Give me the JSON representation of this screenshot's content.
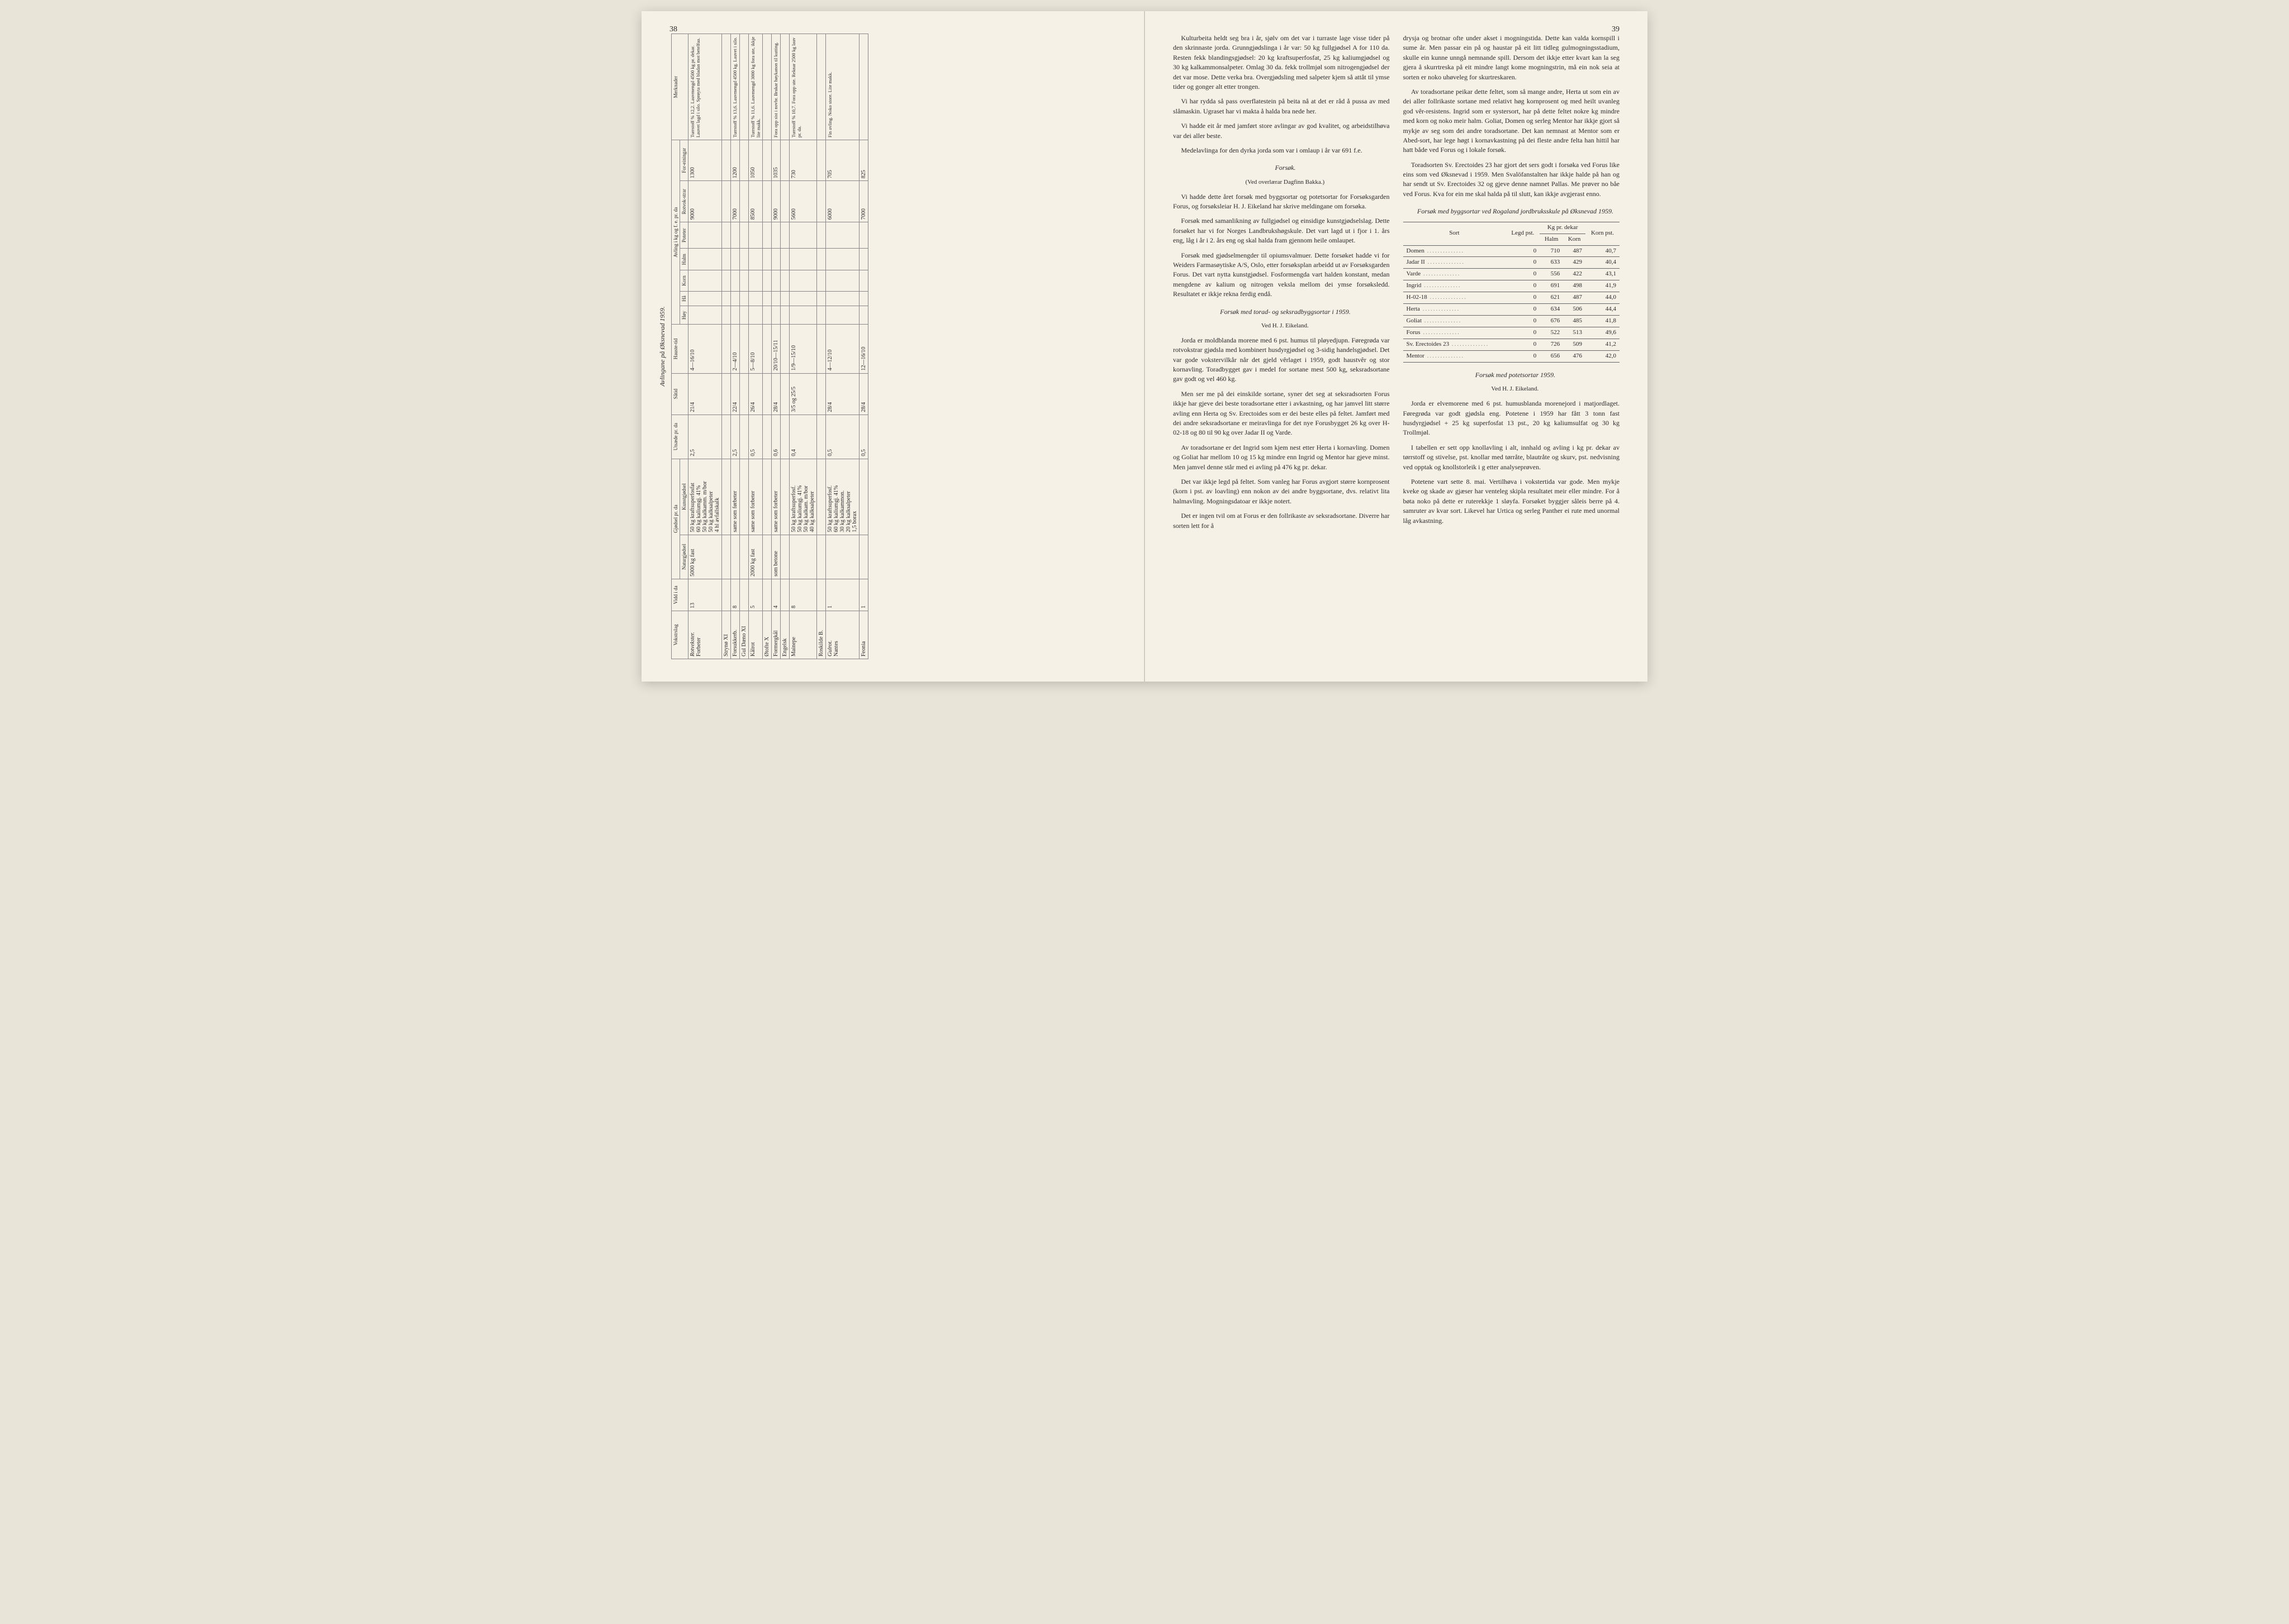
{
  "pageLeft": "38",
  "pageRight": "39",
  "leftTable": {
    "title": "Avlingane på Øksnevad 1959.",
    "headerGroups": [
      {
        "label": "Vokstrslag"
      },
      {
        "label": "Vidd i da"
      },
      {
        "label": "Gjødsel pr. da",
        "sub": [
          "Naturgjødsel",
          "Kunstgjødsel"
        ]
      },
      {
        "label": "Utsæde pr. da"
      },
      {
        "label": "Såtid"
      },
      {
        "label": "Hauste-tid"
      },
      {
        "label": "Avling i kg og f. e. pr. da",
        "sub": [
          "Høy",
          "Hå",
          "Korn",
          "Halm",
          "Poteter",
          "Rotvok-strar",
          "For-einingar"
        ]
      },
      {
        "label": "Merknader"
      }
    ],
    "rows": [
      {
        "crop": "Rotvekster.",
        "items": [
          {
            "name": "Forbeter",
            "vidd": "13",
            "natur": "5000 kg fast",
            "kunst": "50 kg kraftsuperfosfat\n60 kg kaliumgj. 41%\n50 kg kalkamm. m/bor\n50 kg kalksalpeter\n4 hl avfallskalk",
            "utsaede": "2,5",
            "satid": "21/4",
            "hauste": "4—16/10",
            "rotvok": "9000",
            "fe": "1300",
            "merk": "Turrstoff % 12,2. Lauvmengd 4500 kg pr. dekar. Lauvet lagd i silo. Sprøyta med bladan mot betelfua."
          },
          {
            "name": "Strynø XI",
            "vidd": "",
            "natur": "",
            "kunst": "",
            "utsaede": "",
            "satid": "",
            "hauste": "",
            "rotvok": "",
            "fe": "",
            "merk": ""
          }
        ]
      },
      {
        "crop": "",
        "items": [
          {
            "name": "Forsukkerb.",
            "vidd": "8",
            "natur": "",
            "kunst": "same som førbeter",
            "utsaede": "2,5",
            "satid": "22/4",
            "hauste": "2—4/10",
            "rotvok": "7000",
            "fe": "1200",
            "merk": "Turrstoff % 13,6. Lauvmengd 4500 kg. Lauvet i silo."
          },
          {
            "name": "Gul Dæno XI",
            "vidd": "",
            "natur": "",
            "kunst": "",
            "utsaede": "",
            "satid": "",
            "hauste": "",
            "rotvok": "",
            "fe": "",
            "merk": ""
          }
        ]
      },
      {
        "crop": "",
        "items": [
          {
            "name": "Kålrot",
            "vidd": "5",
            "natur": "2000 kg fast",
            "kunst": "same som forbeter",
            "utsaede": "0,5",
            "satid": "26/4",
            "hauste": "5—8/10",
            "rotvok": "8500",
            "fe": "1050",
            "merk": "Turrstoff % 11,6. Lauvmengd 3000 kg fora ute, ikkje lite makk."
          },
          {
            "name": "Øtofte X",
            "vidd": "",
            "natur": "",
            "kunst": "",
            "utsaede": "",
            "satid": "",
            "hauste": "",
            "rotvok": "",
            "fe": "",
            "merk": ""
          }
        ]
      },
      {
        "crop": "",
        "items": [
          {
            "name": "Formergkål",
            "vidd": "4",
            "natur": "som betone",
            "kunst": "same som forbeter",
            "utsaede": "0,6",
            "satid": "28/4",
            "hauste": "20/10—15/11",
            "rotvok": "9000",
            "fe": "1035",
            "merk": "Fora opp sist i novbr. Brukar høykanon til kutting."
          },
          {
            "name": "Engelsk",
            "vidd": "",
            "natur": "",
            "kunst": "",
            "utsaede": "",
            "satid": "",
            "hauste": "",
            "rotvok": "",
            "fe": "",
            "merk": ""
          }
        ]
      },
      {
        "crop": "",
        "items": [
          {
            "name": "Mainepe",
            "vidd": "8",
            "natur": "",
            "kunst": "50 kg kraftsuperfosf.\n50 kg kaliumgj. 41%\n50 kg kalkam. m/bor\n40 kg kalksalpeter",
            "utsaede": "0,4",
            "satid": "3/5 og 25/5",
            "hauste": "1/9—15/10",
            "rotvok": "5600",
            "fe": "730",
            "merk": "Turrstoff % 10,7. Fora opp ute. Reknar 2500 kg lauv pr. da."
          },
          {
            "name": "Roskilde B.",
            "vidd": "",
            "natur": "",
            "kunst": "",
            "utsaede": "",
            "satid": "",
            "hauste": "",
            "rotvok": "",
            "fe": "",
            "merk": ""
          }
        ]
      },
      {
        "crop": "Gulrot.",
        "items": [
          {
            "name": "Nantes",
            "vidd": "1",
            "natur": "",
            "kunst": "50 kg kraftsuperfosf.\n60 kg kaliumgj. 41%\n30 kg kalkammon.\n20 kg kalksalpeter\n1,5 borax",
            "utsaede": "0,5",
            "satid": "28/4",
            "hauste": "4—12/10",
            "rotvok": "6000",
            "fe": "705",
            "merk": "Fin avling. Noko store. Lite makk."
          },
          {
            "name": "Feonia",
            "vidd": "1",
            "natur": "",
            "kunst": "",
            "utsaede": "0,5",
            "satid": "28/4",
            "hauste": "12—16/10",
            "rotvok": "7000",
            "fe": "825",
            "merk": ""
          }
        ]
      }
    ]
  },
  "right": {
    "paragraphs1": [
      "Kulturbeita heldt seg bra i år, sjølv om det var i turraste lage visse tider på den skrinnaste jorda. Grunngjødslinga i år var: 50 kg fullgjødsel A for 110 da. Resten fekk blandingsgjødsel: 20 kg kraftsuperfosfat, 25 kg kaliumgjødsel og 30 kg kalkammonsalpeter. Omlag 30 da. fekk trollmjøl som nitrogengjødsel der det var mose. Dette verka bra. Overgjødsling med salpeter kjem så attåt til ymse tider og gonger alt etter trongen.",
      "Vi har rydda så pass overflatestein på beita nå at det er råd å pussa av med slåmaskin. Ugraset har vi makta å halda bra nede her.",
      "Vi hadde eit år med jamført store avlingar av god kvalitet, og arbeidstilhøva var dei aller beste.",
      "Medelavlinga for den dyrka jorda som var i omlaup i år var 691 f.e."
    ],
    "forsokHeading": "Forsøk.",
    "forsokByline": "(Ved overlærar Dagfinn Bakka.)",
    "paragraphs2": [
      "Vi hadde dette året forsøk med byggsortar og potetsortar for Forsøksgarden Forus, og forsøksleiar H. J. Eikeland har skrive meldingane om forsøka.",
      "Forsøk med samanlikning av fullgjødsel og einsidige kunstgjødselslag. Dette forsøket har vi for Norges Landbrukshøgskule. Det vart lagd ut i fjor i 1. års eng, låg i år i 2. års eng og skal halda fram gjennom heile omlaupet.",
      "Forsøk med gjødselmengder til opiumsvalmuer. Dette forsøket hadde vi for Weiders Farmasøytiske A/S, Oslo, etter forsøksplan arbeidd ut av Forsøksgarden Forus. Det vart nytta kunstgjødsel. Fosformengda vart halden konstant, medan mengdene av kalium og nitrogen veksla mellom dei ymse forsøksledd. Resultatet er ikkje rekna ferdig endå."
    ],
    "toradHeading": "Forsøk med torad- og seksradbyggsortar i 1959.",
    "toradByline": "Ved H. J. Eikeland.",
    "paragraphs3": [
      "Jorda er moldblanda morene med 6 pst. humus til pløyedjupn. Føregrøda var rotvokstrar gjødsla med kombinert husdyrgjødsel og 3-sidig handelsgjødsel. Det var gode vokstervilkår når det gjeld vêrlaget i 1959, godt haustvêr og stor kornavling. Toradbygget gav i medel for sortane mest 500 kg, seksradsortane gav godt og vel 460 kg.",
      "Men ser me på dei einskilde sortane, syner det seg at seksradsorten Forus ikkje har gjeve dei beste toradsortane etter i avkastning, og har jamvel litt større avling enn Herta og Sv. Erectoides som er dei beste elles på feltet. Jamført med dei andre seksradsortane er meiravlinga for det nye Forusbygget 26 kg over H-02-18 og 80 til 90 kg over Jadar II og Varde.",
      "Av toradsortane er det Ingrid som kjem nest etter Herta i kornavling. Domen og Goliat har mellom 10 og 15 kg mindre enn Ingrid og Mentor har gjeve minst. Men jamvel denne står med ei avling på 476 kg pr. dekar.",
      "Det var ikkje legd på feltet. Som vanleg har Forus avgjort større kornprosent (korn i pst. av loavling) enn nokon av dei andre byggsortane, dvs. relativt lita halmavling. Mogningsdatoar er ikkje notert.",
      "Det er ingen tvil om at Forus er den follrikaste av seksradsortane. Diverre har sorten lett for å"
    ],
    "paragraphs4": [
      "drysja og brotnar ofte under akset i mogningstida. Dette kan valda kornspill i sume år. Men passar ein på og haustar på eit litt tidleg gulmogningsstadium, skulle ein kunne unngå nemnande spill. Dersom det ikkje etter kvart kan la seg gjera å skurrtreska på eit mindre langt kome mogningstrin, må ein nok seia at sorten er noko uhøveleg for skurtreskaren.",
      "Av toradsortane peikar dette feltet, som så mange andre, Herta ut som ein av dei aller follrikaste sortane med relativt høg kornprosent og med heilt uvanleg god vêr-resistens. Ingrid som er systersort, har på dette feltet nokre kg mindre med korn og noko meir halm. Goliat, Domen og serleg Mentor har ikkje gjort så mykje av seg som dei andre toradsortane. Det kan nemnast at Mentor som er Abed-sort, har lege høgt i kornavkastning på dei fleste andre felta han hittil har hatt både ved Forus og i lokale forsøk.",
      "Toradsorten Sv. Erectoides 23 har gjort det sers godt i forsøka ved Forus like eins som ved Øksnevad i 1959. Men Svalöfanstalten har ikkje halde på han og har sendt ut Sv. Erectoides 32 og gjeve denne namnet Pallas. Me prøver no båe ved Forus. Kva for ein me skal halda på til slutt, kan ikkje avgjerast enno."
    ],
    "byggTable": {
      "title": "Forsøk med byggsortar ved Rogaland jordbruksskule på Øksnevad 1959.",
      "headers": [
        "Sort",
        "Legd pst.",
        "Halm",
        "Korn",
        "Korn pst."
      ],
      "kgHeader": "Kg pr. dekar",
      "rows": [
        {
          "sort": "Domen",
          "legd": "0",
          "halm": "710",
          "korn": "487",
          "kornpst": "40,7"
        },
        {
          "sort": "Jadar II",
          "legd": "0",
          "halm": "633",
          "korn": "429",
          "kornpst": "40,4"
        },
        {
          "sort": "Varde",
          "legd": "0",
          "halm": "556",
          "korn": "422",
          "kornpst": "43,1"
        },
        {
          "sort": "Ingrid",
          "legd": "0",
          "halm": "691",
          "korn": "498",
          "kornpst": "41,9"
        },
        {
          "sort": "H-02-18",
          "legd": "0",
          "halm": "621",
          "korn": "487",
          "kornpst": "44,0"
        },
        {
          "sort": "Herta",
          "legd": "0",
          "halm": "634",
          "korn": "506",
          "kornpst": "44,4"
        },
        {
          "sort": "Goliat",
          "legd": "0",
          "halm": "676",
          "korn": "485",
          "kornpst": "41,8"
        },
        {
          "sort": "Forus",
          "legd": "0",
          "halm": "522",
          "korn": "513",
          "kornpst": "49,6"
        },
        {
          "sort": "Sv. Erectoides 23",
          "legd": "0",
          "halm": "726",
          "korn": "509",
          "kornpst": "41,2"
        },
        {
          "sort": "Mentor",
          "legd": "0",
          "halm": "656",
          "korn": "476",
          "kornpst": "42,0"
        }
      ]
    },
    "potetHeading": "Forsøk med potetsortar 1959.",
    "potetByline": "Ved H. J. Eikeland.",
    "paragraphs5": [
      "Jorda er elvemorene med 6 pst. humusblanda morenejord i matjordlaget. Føregrøda var godt gjødsla eng. Potetene i 1959 har fått 3 tonn fast husdyrgjødsel + 25 kg superfosfat 13 pst., 20 kg kaliumsulfat og 30 kg Trollmjøl.",
      "I tabellen er sett opp knollavling i alt, innhald og avling i kg pr. dekar av tørrstoff og stivelse, pst. knollar med tørråte, blautråte og skurv, pst. nedvisning ved opptak og knollstorleik i g etter analyseprøven.",
      "Potetene vart sette 8. mai. Vertilhøva i vokstertida var gode. Men mykje kveke og skade av gjæser har venteleg skipla resultatet meir eller mindre. For å bøta noko på dette er ruterekkje 1 sløyfa. Forsøket byggjer såleis berre på 4. samruter av kvar sort. Likevel har Urtica og serleg Panther ei rute med unormal låg avkastning."
    ]
  }
}
